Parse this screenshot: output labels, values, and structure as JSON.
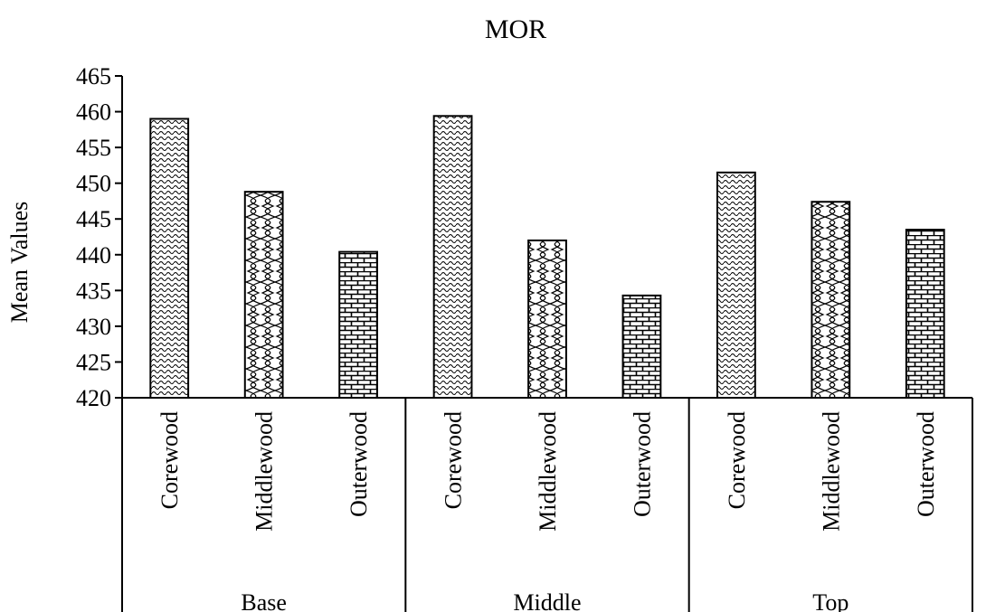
{
  "chart_data": {
    "type": "bar",
    "title": "MOR",
    "xlabel": "",
    "ylabel": "Mean Values",
    "ylim": [
      420,
      465
    ],
    "yticks": [
      420,
      425,
      430,
      435,
      440,
      445,
      450,
      455,
      460,
      465
    ],
    "grid": false,
    "legend": "none",
    "groups": [
      {
        "label": "Base",
        "categories": [
          "Corewood",
          "Middlewood",
          "Outerwood"
        ],
        "values": [
          459.0,
          448.8,
          440.4
        ]
      },
      {
        "label": "Middle",
        "categories": [
          "Corewood",
          "Middlewood",
          "Outerwood"
        ],
        "values": [
          459.4,
          442.0,
          434.3
        ]
      },
      {
        "label": "Top",
        "categories": [
          "Corewood",
          "Middlewood",
          "Outerwood"
        ],
        "values": [
          451.5,
          447.4,
          443.5
        ]
      }
    ],
    "patterns": [
      "wave",
      "scallop",
      "brick"
    ]
  }
}
